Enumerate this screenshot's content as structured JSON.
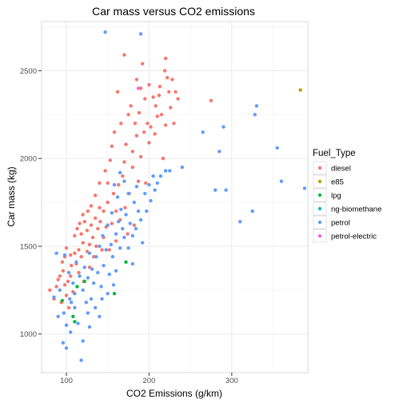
{
  "chart_data": {
    "type": "scatter",
    "title": "Car mass versus CO2 emissions",
    "xlabel": "CO2 Emissions (g/km)",
    "ylabel": "Car mass (kg)",
    "xlim": [
      70,
      392
    ],
    "ylim": [
      780,
      2780
    ],
    "x_ticks": [
      100,
      200,
      300
    ],
    "y_ticks": [
      1000,
      1500,
      2000,
      2500
    ],
    "x_tick_labels": [
      "100",
      "200",
      "300"
    ],
    "y_tick_labels": [
      "1000",
      "1500",
      "2000",
      "2500"
    ],
    "grid": true,
    "legend_position": "right",
    "legend_title": "Fuel_Type",
    "series": [
      {
        "name": "diesel",
        "color": "#F8766D",
        "points": [
          [
            80,
            1250
          ],
          [
            85,
            1200
          ],
          [
            88,
            1270
          ],
          [
            90,
            1310
          ],
          [
            92,
            1330
          ],
          [
            95,
            1410
          ],
          [
            96,
            1360
          ],
          [
            98,
            1280
          ],
          [
            100,
            1490
          ],
          [
            100,
            1220
          ],
          [
            102,
            1300
          ],
          [
            105,
            1450
          ],
          [
            105,
            1330
          ],
          [
            106,
            1390
          ],
          [
            108,
            1240
          ],
          [
            110,
            1460
          ],
          [
            110,
            1560
          ],
          [
            112,
            1400
          ],
          [
            113,
            1600
          ],
          [
            115,
            1480
          ],
          [
            115,
            1350
          ],
          [
            116,
            1630
          ],
          [
            118,
            1570
          ],
          [
            118,
            1440
          ],
          [
            120,
            1680
          ],
          [
            120,
            1520
          ],
          [
            121,
            1300
          ],
          [
            122,
            1640
          ],
          [
            125,
            1590
          ],
          [
            125,
            1470
          ],
          [
            126,
            1700
          ],
          [
            128,
            1510
          ],
          [
            128,
            1380
          ],
          [
            130,
            1620
          ],
          [
            130,
            1730
          ],
          [
            132,
            1550
          ],
          [
            133,
            1440
          ],
          [
            135,
            1660
          ],
          [
            135,
            1790
          ],
          [
            136,
            1500
          ],
          [
            138,
            1600
          ],
          [
            140,
            1720
          ],
          [
            140,
            1860
          ],
          [
            141,
            1640
          ],
          [
            143,
            1480
          ],
          [
            145,
            1550
          ],
          [
            145,
            1700
          ],
          [
            147,
            1930
          ],
          [
            148,
            1610
          ],
          [
            150,
            1750
          ],
          [
            150,
            1860
          ],
          [
            152,
            1480
          ],
          [
            153,
            1990
          ],
          [
            155,
            2070
          ],
          [
            155,
            1630
          ],
          [
            157,
            1800
          ],
          [
            158,
            2150
          ],
          [
            160,
            1530
          ],
          [
            160,
            1700
          ],
          [
            162,
            2380
          ],
          [
            163,
            1850
          ],
          [
            165,
            1650
          ],
          [
            166,
            2200
          ],
          [
            168,
            1900
          ],
          [
            170,
            2590
          ],
          [
            170,
            1980
          ],
          [
            171,
            1720
          ],
          [
            172,
            2080
          ],
          [
            174,
            1570
          ],
          [
            175,
            2250
          ],
          [
            176,
            1800
          ],
          [
            178,
            2300
          ],
          [
            180,
            2040
          ],
          [
            180,
            1950
          ],
          [
            182,
            1620
          ],
          [
            183,
            2200
          ],
          [
            185,
            2130
          ],
          [
            185,
            2450
          ],
          [
            187,
            1870
          ],
          [
            188,
            2260
          ],
          [
            190,
            2400
          ],
          [
            190,
            2010
          ],
          [
            192,
            2540
          ],
          [
            194,
            2150
          ],
          [
            195,
            2340
          ],
          [
            196,
            1860
          ],
          [
            198,
            2200
          ],
          [
            200,
            2090
          ],
          [
            200,
            2420
          ],
          [
            202,
            2180
          ],
          [
            205,
            2350
          ],
          [
            207,
            2140
          ],
          [
            208,
            2300
          ],
          [
            210,
            2240
          ],
          [
            212,
            2360
          ],
          [
            213,
            2410
          ],
          [
            215,
            2250
          ],
          [
            217,
            2000
          ],
          [
            219,
            2500
          ],
          [
            220,
            2190
          ],
          [
            220,
            2570
          ],
          [
            222,
            2460
          ],
          [
            224,
            2380
          ],
          [
            226,
            2290
          ],
          [
            228,
            2450
          ],
          [
            230,
            2200
          ],
          [
            232,
            2380
          ],
          [
            235,
            2340
          ],
          [
            275,
            2330
          ],
          [
            103,
            1150
          ],
          [
            94,
            1180
          ],
          [
            98,
            1440
          ]
        ]
      },
      {
        "name": "e85",
        "color": "#B79F00",
        "points": [
          [
            383,
            2390
          ]
        ]
      },
      {
        "name": "lpg",
        "color": "#00BA38",
        "points": [
          [
            95,
            1190
          ],
          [
            108,
            1100
          ],
          [
            110,
            1070
          ],
          [
            113,
            1270
          ],
          [
            122,
            1300
          ],
          [
            158,
            1230
          ],
          [
            172,
            1410
          ]
        ]
      },
      {
        "name": "ng-biomethane",
        "color": "#00BFC4",
        "points": []
      },
      {
        "name": "petrol",
        "color": "#619CFF",
        "points": [
          [
            85,
            1210
          ],
          [
            88,
            1460
          ],
          [
            90,
            1100
          ],
          [
            92,
            1250
          ],
          [
            96,
            950
          ],
          [
            97,
            1120
          ],
          [
            100,
            1050
          ],
          [
            100,
            920
          ],
          [
            103,
            1350
          ],
          [
            105,
            1010
          ],
          [
            106,
            1180
          ],
          [
            108,
            1290
          ],
          [
            110,
            1150
          ],
          [
            110,
            1230
          ],
          [
            112,
            1410
          ],
          [
            114,
            1060
          ],
          [
            116,
            1330
          ],
          [
            118,
            850
          ],
          [
            120,
            960
          ],
          [
            120,
            1250
          ],
          [
            122,
            1380
          ],
          [
            124,
            1180
          ],
          [
            126,
            1320
          ],
          [
            128,
            1040
          ],
          [
            128,
            1460
          ],
          [
            130,
            1200
          ],
          [
            131,
            1370
          ],
          [
            133,
            1290
          ],
          [
            135,
            1150
          ],
          [
            136,
            1440
          ],
          [
            138,
            1350
          ],
          [
            140,
            1100
          ],
          [
            140,
            1500
          ],
          [
            142,
            1270
          ],
          [
            144,
            1560
          ],
          [
            145,
            1390
          ],
          [
            147,
            2720
          ],
          [
            148,
            1480
          ],
          [
            150,
            1230
          ],
          [
            150,
            1620
          ],
          [
            152,
            1340
          ],
          [
            154,
            1510
          ],
          [
            155,
            1690
          ],
          [
            156,
            1440
          ],
          [
            158,
            1850
          ],
          [
            160,
            1570
          ],
          [
            160,
            1360
          ],
          [
            162,
            1780
          ],
          [
            163,
            1640
          ],
          [
            165,
            1490
          ],
          [
            165,
            1920
          ],
          [
            166,
            1710
          ],
          [
            168,
            1600
          ],
          [
            170,
            1870
          ],
          [
            170,
            1550
          ],
          [
            172,
            1680
          ],
          [
            175,
            1490
          ],
          [
            175,
            1800
          ],
          [
            177,
            1630
          ],
          [
            180,
            1560
          ],
          [
            180,
            1400
          ],
          [
            182,
            1750
          ],
          [
            184,
            1600
          ],
          [
            185,
            1840
          ],
          [
            187,
            1700
          ],
          [
            190,
            1650
          ],
          [
            190,
            2710
          ],
          [
            192,
            1520
          ],
          [
            195,
            1800
          ],
          [
            197,
            1700
          ],
          [
            200,
            1850
          ],
          [
            202,
            1760
          ],
          [
            205,
            1900
          ],
          [
            207,
            1820
          ],
          [
            210,
            1860
          ],
          [
            214,
            1900
          ],
          [
            220,
            1930
          ],
          [
            225,
            1930
          ],
          [
            240,
            1950
          ],
          [
            265,
            2150
          ],
          [
            280,
            1820
          ],
          [
            285,
            2040
          ],
          [
            290,
            2180
          ],
          [
            293,
            1820
          ],
          [
            310,
            1640
          ],
          [
            325,
            1700
          ],
          [
            328,
            2250
          ],
          [
            330,
            2300
          ],
          [
            355,
            2060
          ],
          [
            360,
            1870
          ],
          [
            388,
            1830
          ],
          [
            98,
            1450
          ],
          [
            104,
            1200
          ],
          [
            126,
            1120
          ],
          [
            143,
            1200
          ],
          [
            157,
            1280
          ]
        ]
      },
      {
        "name": "petrol-electric",
        "color": "#F564E3",
        "points": [
          [
            187,
            2400
          ]
        ]
      }
    ]
  }
}
